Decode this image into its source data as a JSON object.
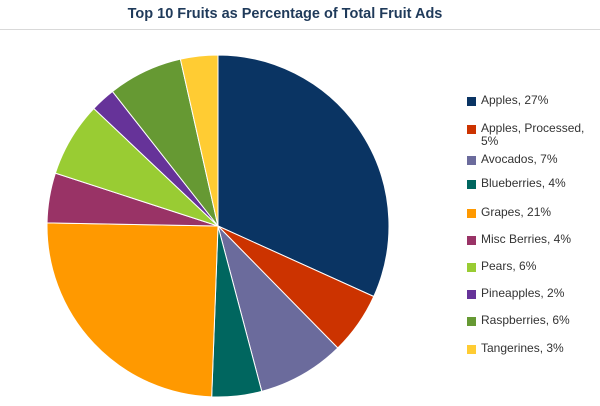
{
  "chart_data": {
    "type": "pie",
    "title": "Top 10 Fruits as Percentage of Total Fruit Ads",
    "legend_position": "right",
    "slices": [
      {
        "label": "Apples, 27%",
        "name": "Apples",
        "value": 27,
        "color": "#0a3463"
      },
      {
        "label": "Apples, Processed, 5%",
        "name": "Apples, Processed",
        "value": 5,
        "color": "#cc3300"
      },
      {
        "label": "Avocados, 7%",
        "name": "Avocados",
        "value": 7,
        "color": "#6b6b9c"
      },
      {
        "label": "Blueberries, 4%",
        "name": "Blueberries",
        "value": 4,
        "color": "#00665f"
      },
      {
        "label": "Grapes, 21%",
        "name": "Grapes",
        "value": 21,
        "color": "#ff9900"
      },
      {
        "label": "Misc Berries, 4%",
        "name": "Misc Berries",
        "value": 4,
        "color": "#993366"
      },
      {
        "label": "Pears, 6%",
        "name": "Pears",
        "value": 6,
        "color": "#99cc33"
      },
      {
        "label": "Pineapples, 2%",
        "name": "Pineapples",
        "value": 2,
        "color": "#663399"
      },
      {
        "label": "Raspberries, 6%",
        "name": "Raspberries",
        "value": 6,
        "color": "#669933"
      },
      {
        "label": "Tangerines, 3%",
        "name": "Tangerines",
        "value": 3,
        "color": "#ffcc33"
      }
    ]
  }
}
